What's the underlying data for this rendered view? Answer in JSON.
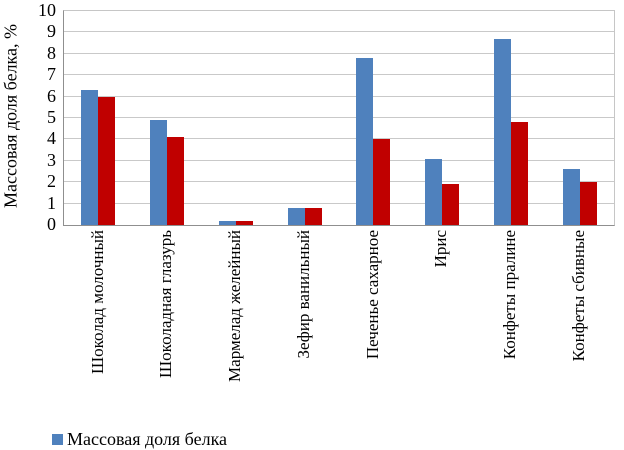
{
  "chart_data": {
    "type": "bar",
    "title": "",
    "ylabel": "Массовая доля белка, %",
    "xlabel": "",
    "ylim": [
      0,
      10
    ],
    "ytick_step": 1,
    "y_ticks": [
      "0",
      "1",
      "2",
      "3",
      "4",
      "5",
      "6",
      "7",
      "8",
      "9",
      "10"
    ],
    "grid": true,
    "legend_position": "bottom-left",
    "categories": [
      "Шоколад молочный",
      "Шоколадная глазурь",
      "Мармелад желейный",
      "Зефир ванильный",
      "Печенье сахарное",
      "Ирис",
      "Конфеты пралине",
      "Конфеты сбивные"
    ],
    "series": [
      {
        "name": "Массовая доля белка",
        "color": "#4F81BD",
        "values": [
          6.3,
          4.9,
          0.2,
          0.8,
          7.8,
          3.1,
          8.7,
          2.6
        ]
      },
      {
        "name": "",
        "color": "#C00000",
        "values": [
          6.0,
          4.1,
          0.2,
          0.8,
          4.0,
          1.9,
          4.8,
          2.0
        ]
      }
    ]
  },
  "colors": {
    "series_blue": "#4F81BD",
    "series_red": "#C00000",
    "gridline": "#c9c9c9",
    "axis": "#8f8f8f"
  },
  "legend": {
    "visible_items": [
      {
        "label": "Массовая доля белка",
        "color": "#4F81BD"
      }
    ]
  }
}
